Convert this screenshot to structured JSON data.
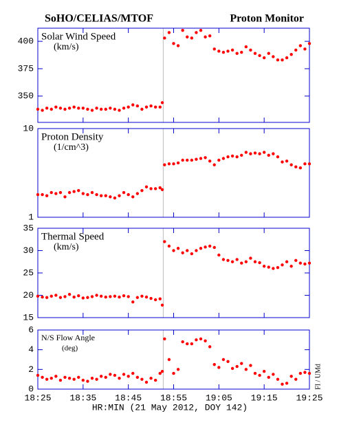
{
  "title": "SoHO/CELIAS/MTOF",
  "subtitle": "Proton Monitor",
  "xlabel": "HR:MIN (21 May 2012, DOY 142)",
  "credit": "FI / UMd",
  "xlim": [
    1105,
    1165
  ],
  "xticks": [
    {
      "value": 1105,
      "label": "18:25"
    },
    {
      "value": 1115,
      "label": "18:35"
    },
    {
      "value": 1125,
      "label": "18:45"
    },
    {
      "value": 1135,
      "label": "18:55"
    },
    {
      "value": 1145,
      "label": "19:05"
    },
    {
      "value": 1155,
      "label": "19:15"
    },
    {
      "value": 1165,
      "label": "19:25"
    }
  ],
  "vline": 1132.7,
  "chart_data": [
    {
      "type": "scatter",
      "title": "Solar Wind Speed",
      "subtitle": "(km/s)",
      "color": "#ff0000",
      "ylim": [
        326,
        412
      ],
      "yticks": [
        350,
        375,
        400
      ],
      "x": [
        1105,
        1106,
        1107,
        1108,
        1109,
        1110,
        1111,
        1112,
        1113,
        1114,
        1115,
        1116,
        1117,
        1118,
        1119,
        1120,
        1121,
        1122,
        1123,
        1124,
        1125,
        1126,
        1127,
        1128,
        1129,
        1130,
        1131,
        1132,
        1132.5,
        1133,
        1134,
        1135,
        1136,
        1137,
        1138,
        1139,
        1140,
        1141,
        1142,
        1143,
        1144,
        1145,
        1146,
        1147,
        1148,
        1149,
        1150,
        1151,
        1152,
        1153,
        1154,
        1155,
        1156,
        1157,
        1158,
        1159,
        1160,
        1161,
        1162,
        1163,
        1164,
        1165
      ],
      "values": [
        338,
        337,
        339,
        338,
        340,
        339,
        338,
        339,
        340,
        339,
        339,
        338,
        337,
        339,
        338,
        338,
        339,
        338,
        337,
        339,
        340,
        342,
        341,
        338,
        340,
        341,
        340,
        340,
        344,
        403,
        408,
        398,
        396,
        410,
        404,
        403,
        408,
        410,
        404,
        405,
        393,
        391,
        390,
        391,
        392,
        389,
        390,
        395,
        392,
        389,
        387,
        385,
        389,
        386,
        383,
        383,
        385,
        388,
        392,
        396,
        393,
        398
      ]
    },
    {
      "type": "scatter",
      "title": "Proton Density",
      "subtitle": "(1/cm^3)",
      "color": "#ff0000",
      "log": true,
      "ylim": [
        1,
        10
      ],
      "yticks": [
        1,
        10
      ],
      "x": [
        1105,
        1106,
        1107,
        1108,
        1109,
        1110,
        1111,
        1112,
        1113,
        1114,
        1115,
        1116,
        1117,
        1118,
        1119,
        1120,
        1121,
        1122,
        1123,
        1124,
        1125,
        1126,
        1127,
        1128,
        1129,
        1130,
        1131,
        1132,
        1132.5,
        1133,
        1134,
        1135,
        1136,
        1137,
        1138,
        1139,
        1140,
        1141,
        1142,
        1143,
        1144,
        1145,
        1146,
        1147,
        1148,
        1149,
        1150,
        1151,
        1152,
        1153,
        1154,
        1155,
        1156,
        1157,
        1158,
        1159,
        1160,
        1161,
        1162,
        1163,
        1164,
        1165
      ],
      "values": [
        1.8,
        1.8,
        1.75,
        1.9,
        1.85,
        1.9,
        1.7,
        1.9,
        1.95,
        2.0,
        1.85,
        1.8,
        1.9,
        1.8,
        1.75,
        1.75,
        1.7,
        1.65,
        1.75,
        1.9,
        1.8,
        1.7,
        1.85,
        2.0,
        2.2,
        2.1,
        2.1,
        2.15,
        2.05,
        3.9,
        4.0,
        4.0,
        4.1,
        4.4,
        4.4,
        4.4,
        4.5,
        4.6,
        4.7,
        4.3,
        3.9,
        4.4,
        4.6,
        4.8,
        4.9,
        4.8,
        5.0,
        5.4,
        5.2,
        5.3,
        5.2,
        5.4,
        5.0,
        5.2,
        4.8,
        4.2,
        4.3,
        3.9,
        3.7,
        3.6,
        4.0,
        4.0
      ]
    },
    {
      "type": "scatter",
      "title": "Thermal Speed",
      "subtitle": "(km/s)",
      "color": "#ff0000",
      "ylim": [
        15,
        35
      ],
      "yticks": [
        15,
        20,
        25,
        30,
        35
      ],
      "x": [
        1105,
        1106,
        1107,
        1108,
        1109,
        1110,
        1111,
        1112,
        1113,
        1114,
        1115,
        1116,
        1117,
        1118,
        1119,
        1120,
        1121,
        1122,
        1123,
        1124,
        1125,
        1126,
        1127,
        1128,
        1129,
        1130,
        1131,
        1132,
        1132.5,
        1133,
        1134,
        1135,
        1136,
        1137,
        1138,
        1139,
        1140,
        1141,
        1142,
        1143,
        1144,
        1145,
        1146,
        1147,
        1148,
        1149,
        1150,
        1151,
        1152,
        1153,
        1154,
        1155,
        1156,
        1157,
        1158,
        1159,
        1160,
        1161,
        1162,
        1163,
        1164,
        1165
      ],
      "values": [
        19.8,
        19.6,
        19.5,
        19.8,
        20,
        19.5,
        19.7,
        20.2,
        19.6,
        19.9,
        19.4,
        19.5,
        19.7,
        20,
        19.8,
        19.6,
        19.7,
        19.8,
        19.6,
        19.9,
        19.7,
        18.5,
        19.5,
        19.8,
        19.6,
        19.3,
        19.0,
        19.2,
        17.8,
        32,
        31,
        30,
        30.5,
        29.5,
        30,
        29.3,
        30,
        30.5,
        30.8,
        31,
        30.7,
        29,
        28,
        27.8,
        27.5,
        28,
        27.2,
        27.5,
        28.3,
        27.5,
        27.3,
        26.5,
        26.3,
        26,
        26.2,
        26.8,
        27.5,
        26.5,
        27.8,
        27.2,
        27,
        27.2
      ]
    },
    {
      "type": "scatter",
      "title": "N/S Flow Angle",
      "subtitle": "(deg)",
      "color": "#ff0000",
      "ylim": [
        0,
        6
      ],
      "yticks": [
        0,
        2,
        4,
        6
      ],
      "x": [
        1105,
        1106,
        1107,
        1108,
        1109,
        1110,
        1111,
        1112,
        1113,
        1114,
        1115,
        1116,
        1117,
        1118,
        1119,
        1120,
        1121,
        1122,
        1123,
        1124,
        1125,
        1126,
        1127,
        1128,
        1129,
        1130,
        1131,
        1132,
        1132.5,
        1133,
        1134,
        1135,
        1136,
        1137,
        1138,
        1139,
        1140,
        1141,
        1142,
        1143,
        1144,
        1145,
        1146,
        1147,
        1148,
        1149,
        1150,
        1151,
        1152,
        1153,
        1154,
        1155,
        1156,
        1157,
        1158,
        1159,
        1160,
        1161,
        1162,
        1163,
        1164,
        1165
      ],
      "values": [
        1.4,
        1.2,
        1.0,
        1.1,
        1.3,
        0.9,
        1.2,
        1.1,
        1.0,
        1.2,
        0.9,
        0.8,
        1.1,
        1.0,
        1.3,
        1.2,
        1.5,
        1.4,
        1.1,
        1.5,
        1.3,
        1.6,
        1.2,
        1.0,
        0.7,
        1.1,
        0.9,
        1.6,
        1.8,
        5.1,
        3.0,
        1.6,
        2.0,
        4.8,
        4.6,
        4.6,
        5.0,
        5.1,
        4.9,
        4.3,
        2.5,
        2.2,
        3.0,
        2.8,
        2.1,
        2.3,
        2.6,
        2.0,
        2.4,
        1.6,
        1.4,
        1.8,
        1.2,
        1.5,
        1.0,
        0.5,
        0.6,
        1.3,
        1.0,
        1.6,
        1.7,
        1.6
      ]
    }
  ]
}
